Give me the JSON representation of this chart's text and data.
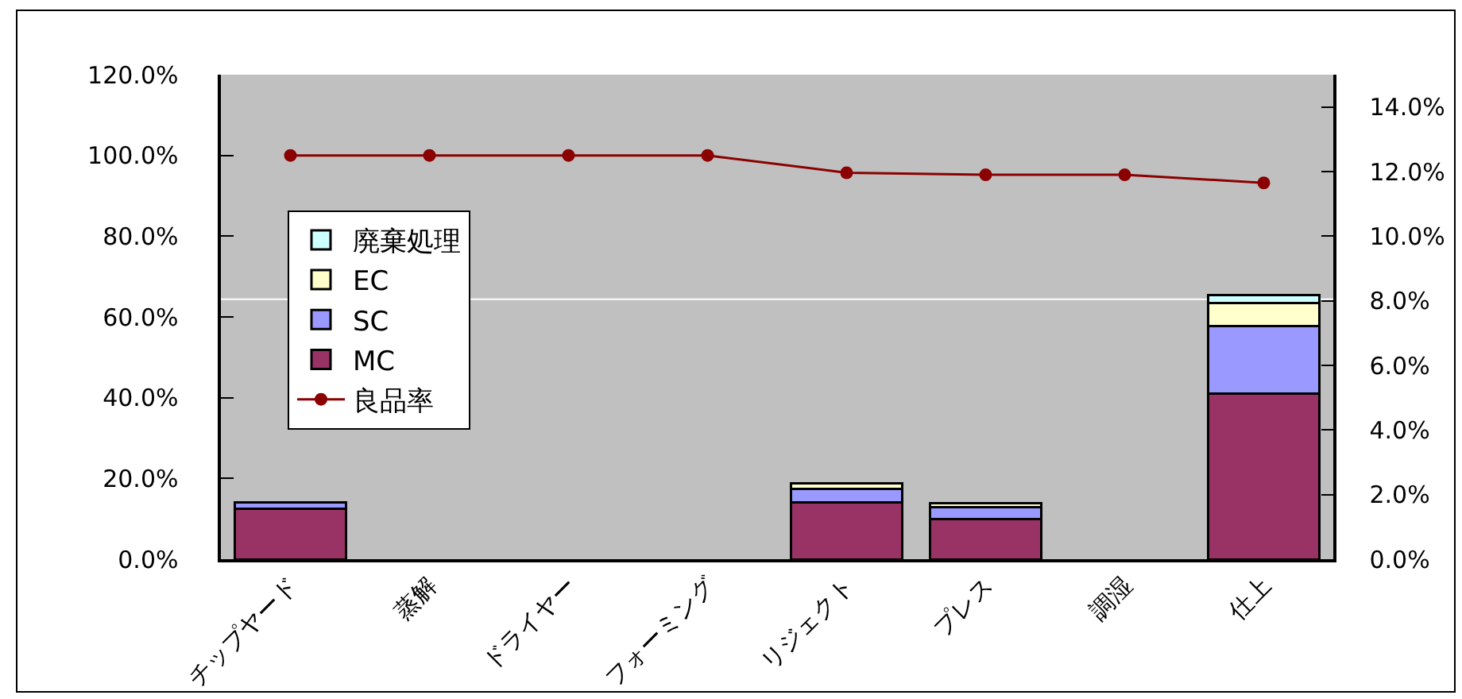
{
  "chart_data": {
    "type": "bar",
    "stacked": true,
    "categories": [
      "チップヤード",
      "蒸解",
      "ドライヤー",
      "フォーミング",
      "リジェクト",
      "プレス",
      "調湿",
      "仕上"
    ],
    "series": [
      {
        "name": "MC",
        "color": "#993366",
        "axis": "y2",
        "values": [
          1.56,
          null,
          null,
          null,
          1.75,
          1.23,
          null,
          5.13
        ]
      },
      {
        "name": "SC",
        "color": "#9999ff",
        "axis": "y2",
        "values": [
          0.2,
          null,
          null,
          null,
          0.42,
          0.38,
          null,
          2.09
        ]
      },
      {
        "name": "EC",
        "color": "#ffffcc",
        "axis": "y2",
        "values": [
          null,
          null,
          null,
          null,
          0.17,
          0.13,
          null,
          0.72
        ]
      },
      {
        "name": "廃棄処理",
        "color": "#ccffff",
        "axis": "y2",
        "values": [
          null,
          null,
          null,
          null,
          null,
          null,
          null,
          0.23
        ]
      },
      {
        "name": "良品率",
        "type": "line",
        "color": "#8b0000",
        "marker": "circle",
        "values": [
          100,
          100,
          100,
          100,
          95.7,
          95.2,
          95.2,
          93.2
        ]
      }
    ],
    "ylim": [
      0,
      120
    ],
    "yticks": [
      {
        "value": 0,
        "label": "0.0%"
      },
      {
        "value": 20,
        "label": "20.0%"
      },
      {
        "value": 40,
        "label": "40.0%"
      },
      {
        "value": 60,
        "label": "60.0%"
      },
      {
        "value": 80,
        "label": "80.0%"
      },
      {
        "value": 100,
        "label": "100.0%"
      },
      {
        "value": 120,
        "label": "120.0%"
      }
    ],
    "y2lim": [
      0,
      15
    ],
    "y2ticks": [
      {
        "value": 0,
        "label": "0.0%"
      },
      {
        "value": 2,
        "label": "2.0%"
      },
      {
        "value": 4,
        "label": "4.0%"
      },
      {
        "value": 6,
        "label": "6.0%"
      },
      {
        "value": 8,
        "label": "8.0%"
      },
      {
        "value": 10,
        "label": "10.0%"
      },
      {
        "value": 12,
        "label": "12.0%"
      },
      {
        "value": 14,
        "label": "14.0%"
      }
    ],
    "ref_lines": [
      {
        "axis": "y2",
        "value": 8.05,
        "label": null,
        "color": "#ffffff"
      }
    ],
    "legend": "left",
    "grid": false
  }
}
